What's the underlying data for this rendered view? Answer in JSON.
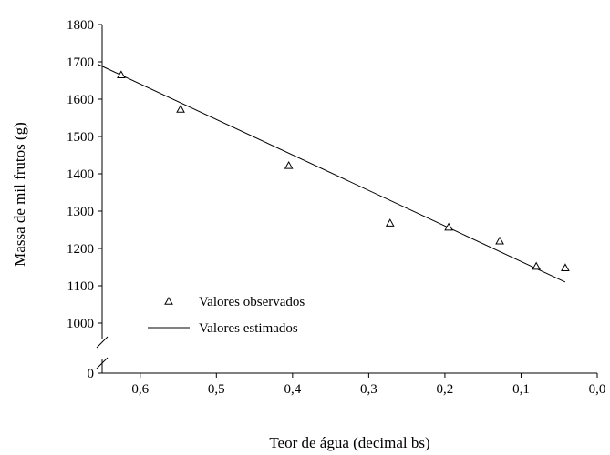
{
  "chart_data": {
    "type": "scatter",
    "xlabel": "Teor de água (decimal bs)",
    "ylabel": "Massa de mil frutos (g)",
    "x_axis": {
      "reversed": true,
      "range": [
        0.65,
        0.0
      ],
      "ticks": [
        0.6,
        0.5,
        0.4,
        0.3,
        0.2,
        0.1,
        0.0
      ],
      "tick_labels": [
        "0,6",
        "0,5",
        "0,4",
        "0,3",
        "0,2",
        "0,1",
        "0,0"
      ]
    },
    "y_axis": {
      "broken": true,
      "range": [
        1000,
        1800
      ],
      "ticks": [
        1000,
        1100,
        1200,
        1300,
        1400,
        1500,
        1600,
        1700,
        1800
      ],
      "tick_labels": [
        "1000",
        "1100",
        "1200",
        "1300",
        "1400",
        "1500",
        "1600",
        "1700",
        "1800"
      ],
      "origin_label": "0"
    },
    "grid": false,
    "legend": {
      "position": "bottom-left"
    },
    "series": [
      {
        "name": "Valores observados",
        "marker": "triangle",
        "x": [
          0.625,
          0.547,
          0.405,
          0.272,
          0.195,
          0.128,
          0.08,
          0.042
        ],
        "y": [
          1665,
          1573,
          1422,
          1268,
          1257,
          1220,
          1152,
          1148
        ]
      },
      {
        "name": "Valores estimados",
        "style": "line",
        "x": [
          0.655,
          0.042
        ],
        "y": [
          1693,
          1110
        ]
      }
    ]
  }
}
